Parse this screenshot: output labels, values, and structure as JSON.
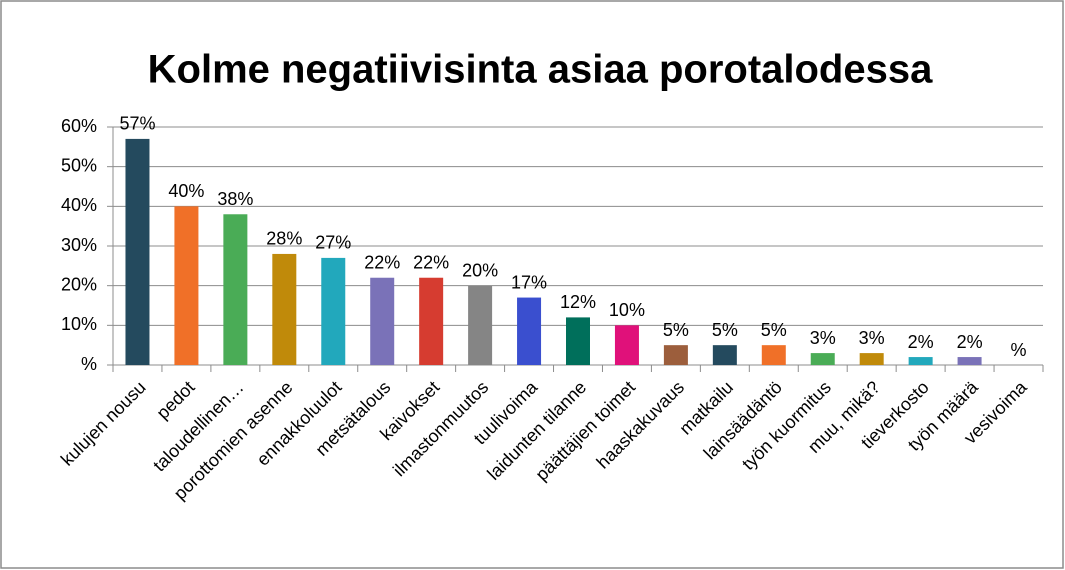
{
  "chart_data": {
    "type": "bar",
    "title": "Kolme negatiivisinta asiaa porotalodessa",
    "categories": [
      "kulujen nousu",
      "pedot",
      "taloudellinen…",
      "porottomien asenne",
      "ennakkoluulot",
      "metsätalous",
      "kaivokset",
      "ilmastonmuutos",
      "tuulivoima",
      "laidunten tilanne",
      "päättäjien toimet",
      "haaskakuvaus",
      "matkailu",
      "lainsäädäntö",
      "työn kuormitus",
      "muu, mikä?",
      "tieverkosto",
      "työn määrä",
      "vesivoima"
    ],
    "values": [
      57,
      40,
      38,
      28,
      27,
      22,
      22,
      20,
      17,
      12,
      10,
      5,
      5,
      5,
      3,
      3,
      2,
      2,
      0
    ],
    "value_labels": [
      "57%",
      "40%",
      "38%",
      "28%",
      "27%",
      "22%",
      "22%",
      "20%",
      "17%",
      "12%",
      "10%",
      "5%",
      "5%",
      "5%",
      "3%",
      "3%",
      "2%",
      "2%",
      "%"
    ],
    "colors": [
      "#244a5e",
      "#f07028",
      "#4aac56",
      "#c08a0a",
      "#22a8bc",
      "#7a72b8",
      "#d63c30",
      "#858585",
      "#3a4fcf",
      "#006f5b",
      "#e0117a",
      "#9c5e3c",
      "#244a5e",
      "#f07028",
      "#4aac56",
      "#c08a0a",
      "#22a8bc",
      "#7a72b8",
      "#d63c30"
    ],
    "ylim": [
      0,
      60
    ],
    "yticks": [
      {
        "value": 0,
        "label": "%"
      },
      {
        "value": 10,
        "label": "10%"
      },
      {
        "value": 20,
        "label": "20%"
      },
      {
        "value": 30,
        "label": "30%"
      },
      {
        "value": 40,
        "label": "40%"
      },
      {
        "value": 50,
        "label": "50%"
      },
      {
        "value": 60,
        "label": "60%"
      }
    ],
    "grid": true
  }
}
